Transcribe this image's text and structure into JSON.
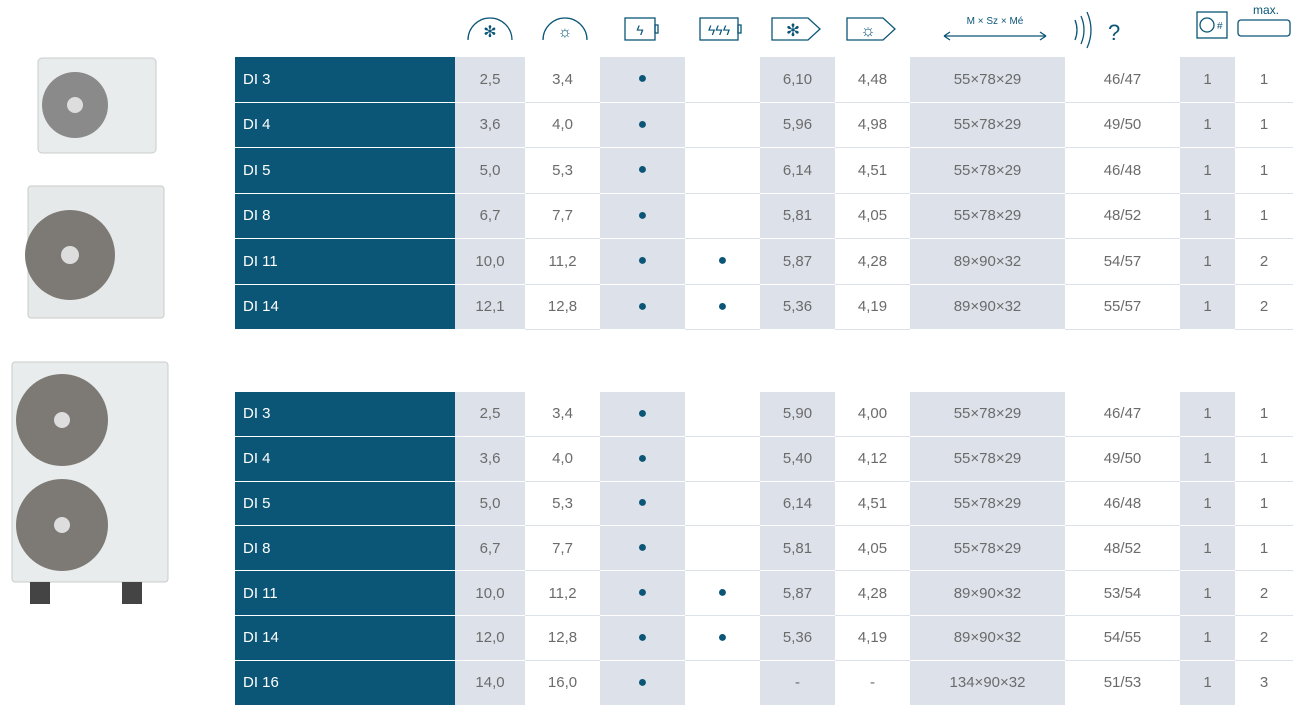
{
  "header": {
    "dimensions_label": "M × Sz × Mé",
    "max_label": "max."
  },
  "tables": [
    {
      "rows": [
        [
          "DI 3",
          "2,5",
          "3,4",
          "●",
          null,
          "6,10",
          "4,48",
          "55×78×29",
          "46/47",
          "1",
          "1"
        ],
        [
          "DI 4",
          "3,6",
          "4,0",
          "●",
          null,
          "5,96",
          "4,98",
          "55×78×29",
          "49/50",
          "1",
          "1"
        ],
        [
          "DI 5",
          "5,0",
          "5,3",
          "●",
          null,
          "6,14",
          "4,51",
          "55×78×29",
          "46/48",
          "1",
          "1"
        ],
        [
          "DI 8",
          "6,7",
          "7,7",
          "●",
          null,
          "5,81",
          "4,05",
          "55×78×29",
          "48/52",
          "1",
          "1"
        ],
        [
          "DI 11",
          "10,0",
          "11,2",
          "●",
          "●",
          "5,87",
          "4,28",
          "89×90×32",
          "54/57",
          "1",
          "2"
        ],
        [
          "DI 14",
          "12,1",
          "12,8",
          "●",
          "●",
          "5,36",
          "4,19",
          "89×90×32",
          "55/57",
          "1",
          "2"
        ]
      ]
    },
    {
      "rows": [
        [
          "DI 3",
          "2,5",
          "3,4",
          "●",
          null,
          "5,90",
          "4,00",
          "55×78×29",
          "46/47",
          "1",
          "1"
        ],
        [
          "DI 4",
          "3,6",
          "4,0",
          "●",
          null,
          "5,40",
          "4,12",
          "55×78×29",
          "49/50",
          "1",
          "1"
        ],
        [
          "DI 5",
          "5,0",
          "5,3",
          "●",
          null,
          "6,14",
          "4,51",
          "55×78×29",
          "46/48",
          "1",
          "1"
        ],
        [
          "DI 8",
          "6,7",
          "7,7",
          "●",
          null,
          "5,81",
          "4,05",
          "55×78×29",
          "48/52",
          "1",
          "1"
        ],
        [
          "DI 11",
          "10,0",
          "11,2",
          "●",
          "●",
          "5,87",
          "4,28",
          "89×90×32",
          "53/54",
          "1",
          "2"
        ],
        [
          "DI 14",
          "12,0",
          "12,8",
          "●",
          "●",
          "5,36",
          "4,19",
          "89×90×32",
          "54/55",
          "1",
          "2"
        ],
        [
          "DI 16",
          "14,0",
          "16,0",
          "●",
          null,
          "-",
          "-",
          "134×90×32",
          "51/53",
          "1",
          "3"
        ]
      ]
    }
  ]
}
